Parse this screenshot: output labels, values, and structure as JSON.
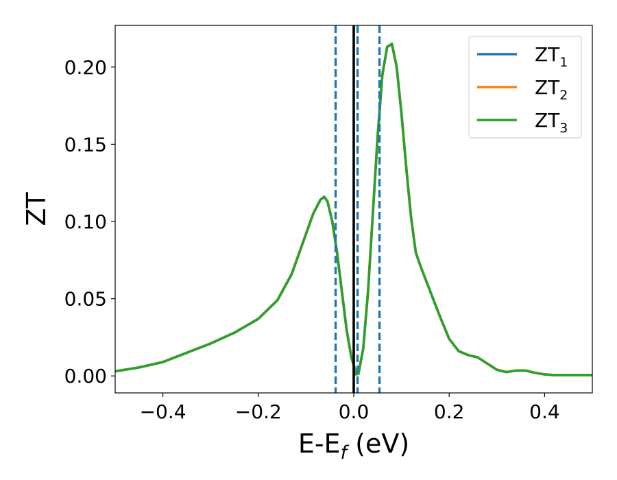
{
  "chart_data": {
    "type": "line",
    "xlabel": "E-E",
    "xlabel_sub": "f",
    "xlabel_unit": " (eV)",
    "ylabel": "ZT",
    "xlim": [
      -0.5,
      0.5
    ],
    "ylim": [
      -0.011,
      0.227
    ],
    "x_ticks": [
      -0.4,
      -0.2,
      0.0,
      0.2,
      0.4
    ],
    "x_tick_labels": [
      "−0.4",
      "−0.2",
      "0.0",
      "0.2",
      "0.4"
    ],
    "y_ticks": [
      0.0,
      0.05,
      0.1,
      0.15,
      0.2
    ],
    "y_tick_labels": [
      "0.00",
      "0.05",
      "0.10",
      "0.15",
      "0.20"
    ],
    "grid": false,
    "legend_position": "top-right",
    "vertical_lines": [
      {
        "x": -0.038,
        "style": "dashed",
        "color": "#1f77b4"
      },
      {
        "x": 0.0,
        "style": "solid",
        "color": "#000000"
      },
      {
        "x": 0.008,
        "style": "dashed",
        "color": "#1f77b4"
      },
      {
        "x": 0.054,
        "style": "dashed",
        "color": "#1f77b4"
      }
    ],
    "x": [
      -0.5,
      -0.45,
      -0.4,
      -0.35,
      -0.3,
      -0.25,
      -0.2,
      -0.16,
      -0.13,
      -0.1,
      -0.085,
      -0.07,
      -0.062,
      -0.055,
      -0.045,
      -0.035,
      -0.025,
      -0.015,
      -0.005,
      0.0,
      0.005,
      0.01,
      0.02,
      0.03,
      0.04,
      0.05,
      0.06,
      0.07,
      0.08,
      0.09,
      0.1,
      0.11,
      0.12,
      0.13,
      0.14,
      0.15,
      0.16,
      0.18,
      0.2,
      0.22,
      0.24,
      0.26,
      0.28,
      0.3,
      0.32,
      0.34,
      0.36,
      0.38,
      0.4,
      0.42,
      0.44,
      0.46,
      0.48,
      0.5
    ],
    "series": [
      {
        "name": "ZT",
        "name_sub": "1",
        "color": "#1f77b4",
        "values": [
          0.003,
          0.0055,
          0.009,
          0.015,
          0.021,
          0.028,
          0.037,
          0.049,
          0.066,
          0.092,
          0.105,
          0.114,
          0.116,
          0.113,
          0.1,
          0.08,
          0.055,
          0.03,
          0.012,
          0.007,
          0.001,
          0.0015,
          0.018,
          0.055,
          0.105,
          0.155,
          0.195,
          0.213,
          0.215,
          0.2,
          0.17,
          0.135,
          0.103,
          0.08,
          0.071,
          0.063,
          0.055,
          0.039,
          0.024,
          0.016,
          0.0135,
          0.012,
          0.008,
          0.004,
          0.0025,
          0.0035,
          0.0035,
          0.002,
          0.001,
          0.0005,
          0.0005,
          0.0005,
          0.0005,
          0.0005
        ]
      },
      {
        "name": "ZT",
        "name_sub": "2",
        "color": "#ff7f0e",
        "values": [
          0.003,
          0.0055,
          0.009,
          0.015,
          0.021,
          0.028,
          0.037,
          0.049,
          0.066,
          0.092,
          0.105,
          0.114,
          0.116,
          0.113,
          0.1,
          0.08,
          0.055,
          0.03,
          0.012,
          0.007,
          0.001,
          0.0015,
          0.018,
          0.055,
          0.105,
          0.155,
          0.195,
          0.213,
          0.215,
          0.2,
          0.17,
          0.135,
          0.103,
          0.08,
          0.071,
          0.063,
          0.055,
          0.039,
          0.024,
          0.016,
          0.0135,
          0.012,
          0.008,
          0.004,
          0.0025,
          0.0035,
          0.0035,
          0.002,
          0.001,
          0.0005,
          0.0005,
          0.0005,
          0.0005,
          0.0005
        ]
      },
      {
        "name": "ZT",
        "name_sub": "3",
        "color": "#2ca02c",
        "values": [
          0.003,
          0.0055,
          0.009,
          0.015,
          0.021,
          0.028,
          0.037,
          0.049,
          0.066,
          0.092,
          0.105,
          0.114,
          0.116,
          0.113,
          0.1,
          0.08,
          0.055,
          0.03,
          0.012,
          0.007,
          0.001,
          0.0015,
          0.018,
          0.055,
          0.105,
          0.155,
          0.195,
          0.213,
          0.215,
          0.2,
          0.17,
          0.135,
          0.103,
          0.08,
          0.071,
          0.063,
          0.055,
          0.039,
          0.024,
          0.016,
          0.0135,
          0.012,
          0.008,
          0.004,
          0.0025,
          0.0035,
          0.0035,
          0.002,
          0.001,
          0.0005,
          0.0005,
          0.0005,
          0.0005,
          0.0005
        ]
      }
    ]
  }
}
